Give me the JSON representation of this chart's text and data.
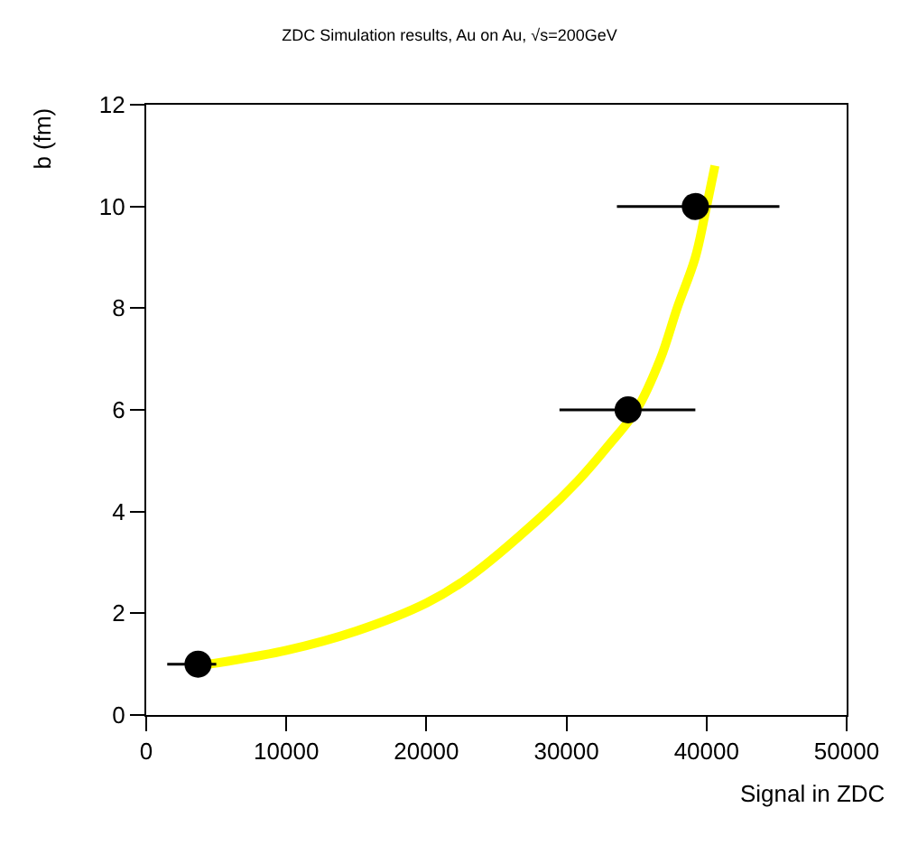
{
  "chart_data": {
    "type": "scatter",
    "title": "ZDC Simulation results, Au on Au, √s=200GeV",
    "xlabel": "Signal in ZDC",
    "ylabel": "b (fm)",
    "xlim": [
      0,
      50000
    ],
    "ylim": [
      0,
      12
    ],
    "xticks": [
      0,
      10000,
      20000,
      30000,
      40000,
      50000
    ],
    "yticks": [
      0,
      2,
      4,
      6,
      8,
      10,
      12
    ],
    "grid": false,
    "series": [
      {
        "type": "line",
        "color": "#ffff00",
        "x": [
          4500,
          10000,
          15000,
          20000,
          23000,
          28200,
          30800,
          33000,
          35000,
          36700,
          37900,
          39200,
          40000,
          40600
        ],
        "values": [
          1.0,
          1.27,
          1.65,
          2.2,
          2.7,
          3.9,
          4.6,
          5.3,
          6.0,
          7.0,
          8.0,
          9.0,
          10.0,
          10.8
        ]
      },
      {
        "color": "#000000",
        "marker": "circle",
        "x": [
          3700,
          34400,
          39200
        ],
        "values": [
          1,
          6,
          10
        ],
        "xerrors": [
          [
            1500,
            5000
          ],
          [
            29500,
            39200
          ],
          [
            33600,
            45200
          ]
        ]
      }
    ]
  }
}
